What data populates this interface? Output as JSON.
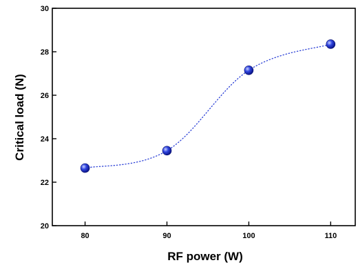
{
  "chart_data": {
    "type": "scatter",
    "title": "",
    "xlabel": "RF power (W)",
    "ylabel": "Critical load (N)",
    "xlim": [
      76,
      113
    ],
    "ylim": [
      20,
      30
    ],
    "xticks": [
      80,
      90,
      100,
      110
    ],
    "yticks": [
      20,
      22,
      24,
      26,
      28,
      30
    ],
    "series": [
      {
        "x": [
          80,
          90,
          100,
          110
        ],
        "y": [
          22.65,
          23.45,
          27.15,
          28.35
        ],
        "marker_color": "#2a3fd6",
        "line_color": "#2a3fd6",
        "line_style": "dotted-smooth"
      }
    ],
    "grid": false,
    "legend": "none"
  }
}
